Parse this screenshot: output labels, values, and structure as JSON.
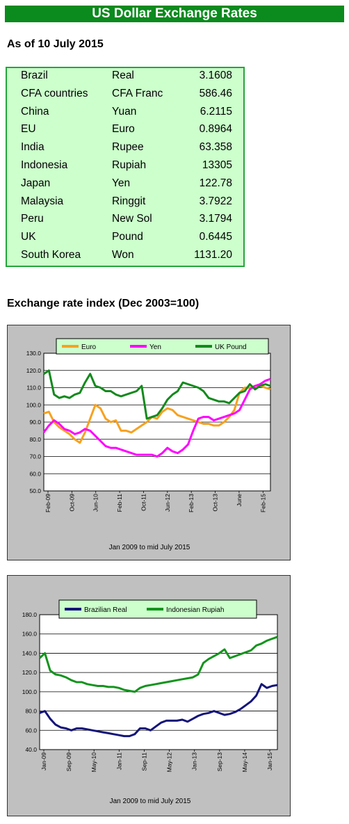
{
  "header": {
    "title": "US Dollar Exchange Rates",
    "as_of": "As of 10 July 2015"
  },
  "rates": [
    {
      "country": "Brazil",
      "currency": "Real",
      "value": "3.1608"
    },
    {
      "country": "CFA countries",
      "currency": "CFA Franc",
      "value": "586.46"
    },
    {
      "country": "China",
      "currency": "Yuan",
      "value": "6.2115"
    },
    {
      "country": "EU",
      "currency": "Euro",
      "value": "0.8964"
    },
    {
      "country": "India",
      "currency": "Rupee",
      "value": "63.358"
    },
    {
      "country": "Indonesia",
      "currency": "Rupiah",
      "value": "13305"
    },
    {
      "country": "Japan",
      "currency": "Yen",
      "value": "122.78"
    },
    {
      "country": "Malaysia",
      "currency": "Ringgit",
      "value": "3.7922"
    },
    {
      "country": "Peru",
      "currency": "New Sol",
      "value": "3.1794"
    },
    {
      "country": "UK",
      "currency": "Pound",
      "value": "0.6445"
    },
    {
      "country": "South Korea",
      "currency": "Won",
      "value": "1131.20"
    }
  ],
  "section_title": "Exchange rate index (Dec 2003=100)",
  "colors": {
    "title_bar": "#0b8a1e",
    "table_bg": "#ccffcc",
    "table_border": "#22a63a",
    "euro": "#f7a11f",
    "yen": "#ff00ff",
    "uk_pound": "#138a1d",
    "real": "#14147a",
    "rupiah": "#13941d",
    "panel": "#c0c0c0"
  },
  "chart_data": [
    {
      "type": "line",
      "xlabel": "Jan 2009 to mid July 2015",
      "ylim": [
        50,
        130
      ],
      "yticks": [
        "50.0",
        "60.0",
        "70.0",
        "80.0",
        "90.0",
        "100.0",
        "110.0",
        "120.0",
        "130.0"
      ],
      "xticks": [
        "Feb-09",
        "Oct-09",
        "Jun-10",
        "Feb-11",
        "Oct-11",
        "Jun-12",
        "Feb-13",
        "Oct-13",
        "June",
        "Feb-15"
      ],
      "legend_position": "top",
      "grid": true,
      "series": [
        {
          "name": "Euro",
          "color": "#f7a11f",
          "values": [
            95,
            96,
            90,
            87,
            85,
            83,
            80,
            78,
            84,
            92,
            100,
            98,
            92,
            90,
            91,
            85,
            85,
            84,
            86,
            88,
            90,
            93,
            92,
            96,
            98,
            97,
            94,
            93,
            92,
            91,
            90,
            89,
            89,
            88,
            88,
            90,
            93,
            97,
            107,
            110,
            110,
            111,
            111,
            110,
            109
          ]
        },
        {
          "name": "Yen",
          "color": "#ff00ff",
          "values": [
            84,
            88,
            91,
            89,
            86,
            85,
            83,
            84,
            86,
            85,
            82,
            79,
            76,
            75,
            75,
            74,
            73,
            72,
            71,
            71,
            71,
            71,
            70,
            72,
            75,
            73,
            72,
            74,
            77,
            85,
            92,
            93,
            93,
            91,
            92,
            93,
            94,
            95,
            97,
            103,
            109,
            111,
            112,
            114,
            115
          ]
        },
        {
          "name": "UK Pound",
          "color": "#138a1d",
          "values": [
            118,
            120,
            106,
            104,
            105,
            104,
            106,
            107,
            113,
            118,
            111,
            110,
            108,
            108,
            106,
            105,
            106,
            107,
            108,
            111,
            92,
            93,
            94,
            98,
            103,
            106,
            108,
            113,
            112,
            111,
            110,
            108,
            104,
            103,
            102,
            102,
            101,
            104,
            107,
            108,
            112,
            109,
            111,
            112,
            111
          ]
        }
      ]
    },
    {
      "type": "line",
      "xlabel": "Jan 2009 to mid July 2015",
      "ylim": [
        40,
        180
      ],
      "yticks": [
        "40.0",
        "60.0",
        "80.0",
        "100.0",
        "120.0",
        "140.0",
        "160.0",
        "180.0"
      ],
      "xticks": [
        "Jan-09",
        "Sep-09",
        "May-10",
        "Jan-11",
        "Sep-11",
        "May-12",
        "Jan-13",
        "Sep-13",
        "May-14",
        "Jan-15"
      ],
      "legend_position": "top",
      "grid": true,
      "series": [
        {
          "name": "Brazilian Real",
          "color": "#14147a",
          "values": [
            78,
            80,
            72,
            66,
            63,
            62,
            60,
            62,
            62,
            61,
            60,
            59,
            58,
            57,
            56,
            55,
            54,
            54,
            56,
            62,
            62,
            60,
            64,
            68,
            70,
            70,
            70,
            71,
            69,
            72,
            75,
            77,
            78,
            80,
            78,
            76,
            77,
            79,
            82,
            86,
            90,
            96,
            108,
            104,
            106,
            107
          ]
        },
        {
          "name": "Indonesian Rupiah",
          "color": "#13941d",
          "values": [
            135,
            140,
            122,
            118,
            117,
            115,
            112,
            110,
            110,
            108,
            107,
            106,
            106,
            105,
            105,
            104,
            102,
            101,
            100,
            104,
            106,
            107,
            108,
            109,
            110,
            111,
            112,
            113,
            114,
            115,
            118,
            130,
            134,
            137,
            140,
            144,
            135,
            137,
            139,
            141,
            143,
            148,
            150,
            153,
            155,
            157
          ]
        }
      ]
    }
  ]
}
